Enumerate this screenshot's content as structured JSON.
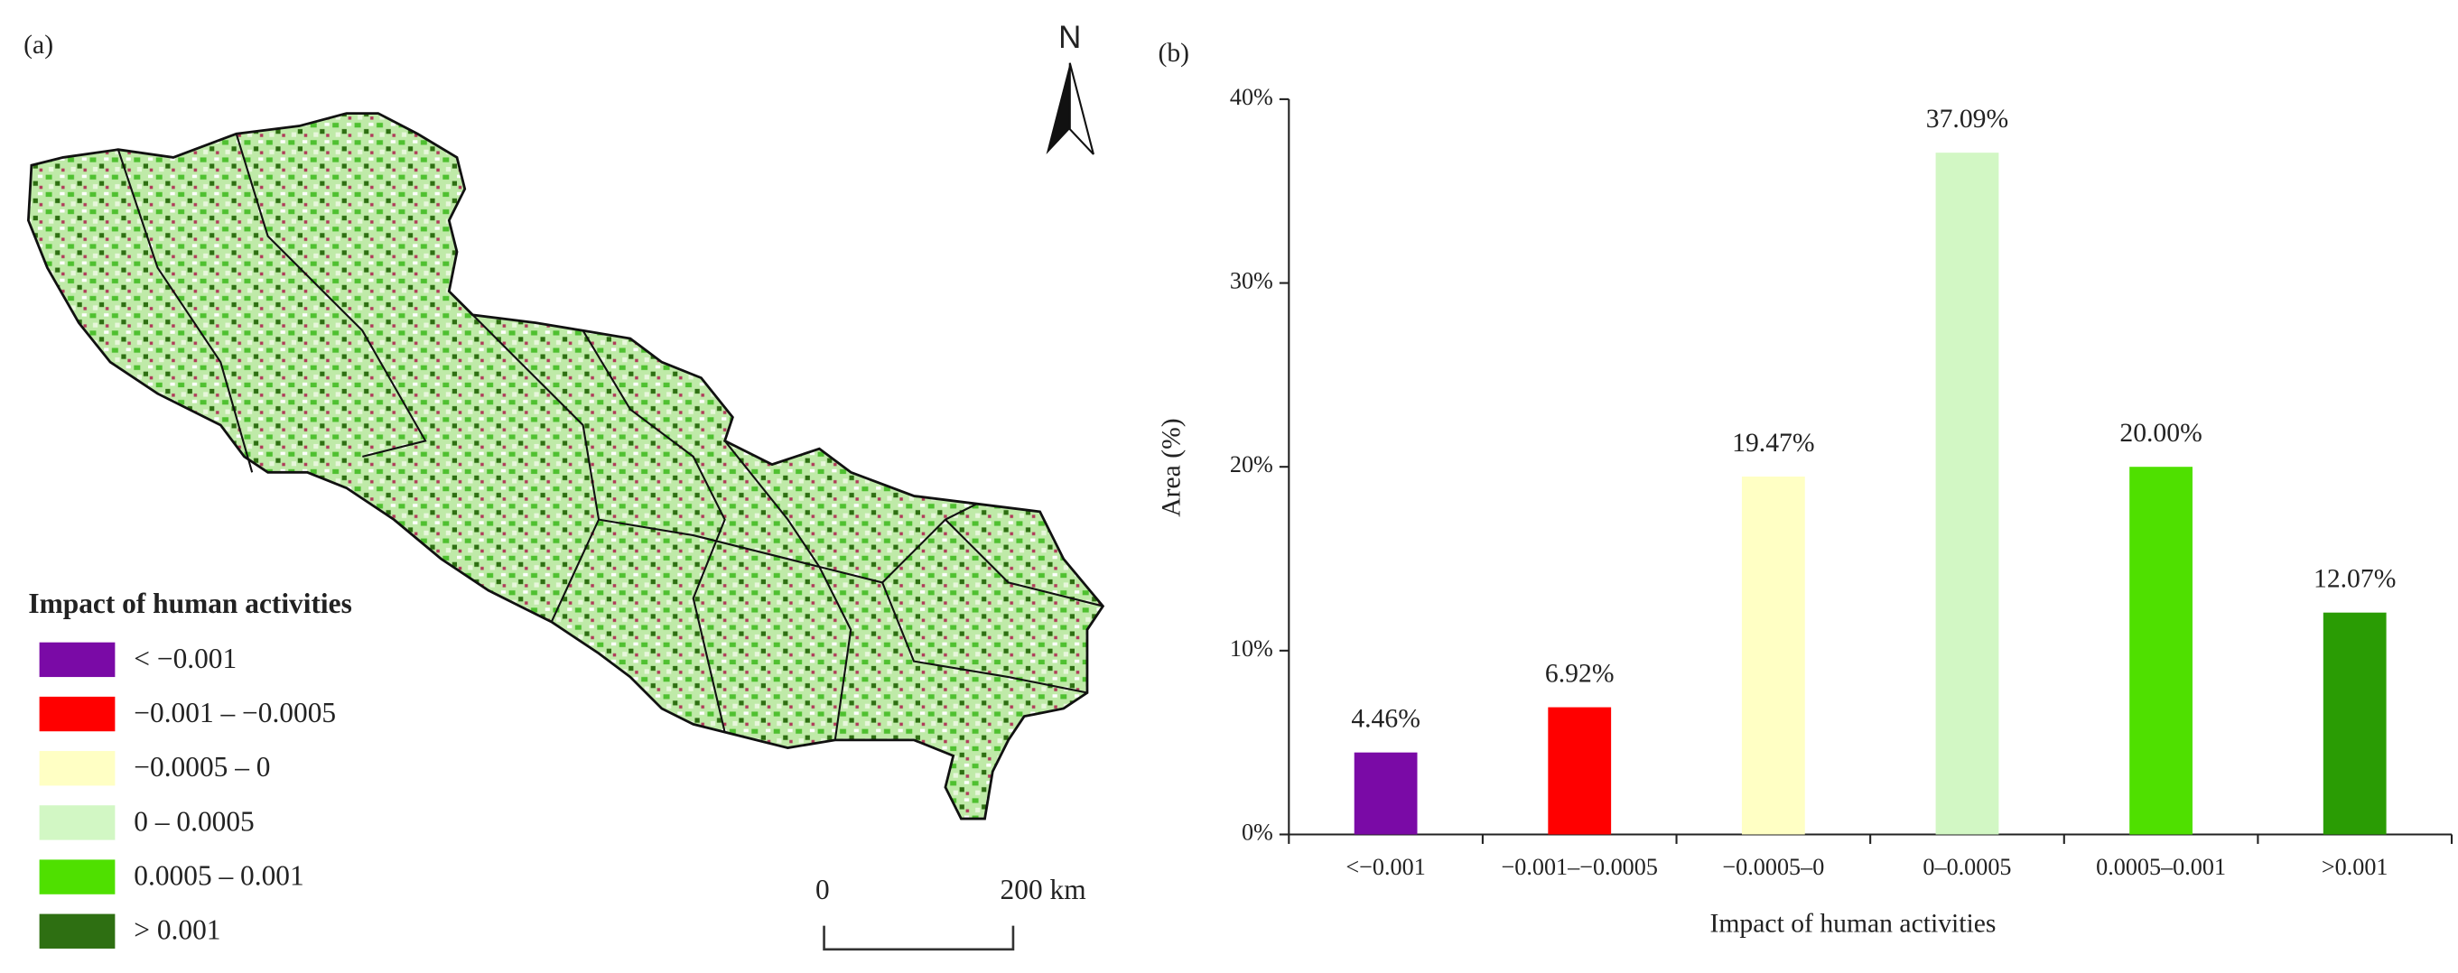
{
  "map": {
    "label": "(a)",
    "north": "N",
    "legend": {
      "title": "Impact of human activities",
      "items": [
        {
          "label": "< −0.001",
          "color": "#7a0aa6"
        },
        {
          "label": "−0.001 – −0.0005",
          "color": "#ff0000"
        },
        {
          "label": "−0.0005 – 0",
          "color": "#ffffc4"
        },
        {
          "label": "0 – 0.0005",
          "color": "#d2f7c4"
        },
        {
          "label": "0.0005 – 0.001",
          "color": "#4fe000"
        },
        {
          "label": "> 0.001",
          "color": "#2e6f12"
        }
      ]
    },
    "scale": {
      "start": "0",
      "end": "200 km"
    }
  },
  "chart_data": {
    "type": "bar",
    "label": "(b)",
    "xlabel": "Impact of human activities",
    "ylabel": "Area (%)",
    "categories": [
      "<−0.001",
      "−0.001–−0.0005",
      "−0.0005–0",
      "0–0.0005",
      "0.0005–0.001",
      ">0.001"
    ],
    "values": [
      4.46,
      6.92,
      19.47,
      37.09,
      20.0,
      12.07
    ],
    "value_labels": [
      "4.46%",
      "6.92%",
      "19.47%",
      "37.09%",
      "20.00%",
      "12.07%"
    ],
    "colors": [
      "#7a0aa6",
      "#ff0000",
      "#ffffc4",
      "#d2f7c4",
      "#4fe000",
      "#2a9c04"
    ],
    "ylim": [
      0,
      40
    ],
    "yticks": [
      {
        "value": 0,
        "label": "0%"
      },
      {
        "value": 10,
        "label": "10%"
      },
      {
        "value": 20,
        "label": "20%"
      },
      {
        "value": 30,
        "label": "30%"
      },
      {
        "value": 40,
        "label": "40%"
      }
    ]
  }
}
